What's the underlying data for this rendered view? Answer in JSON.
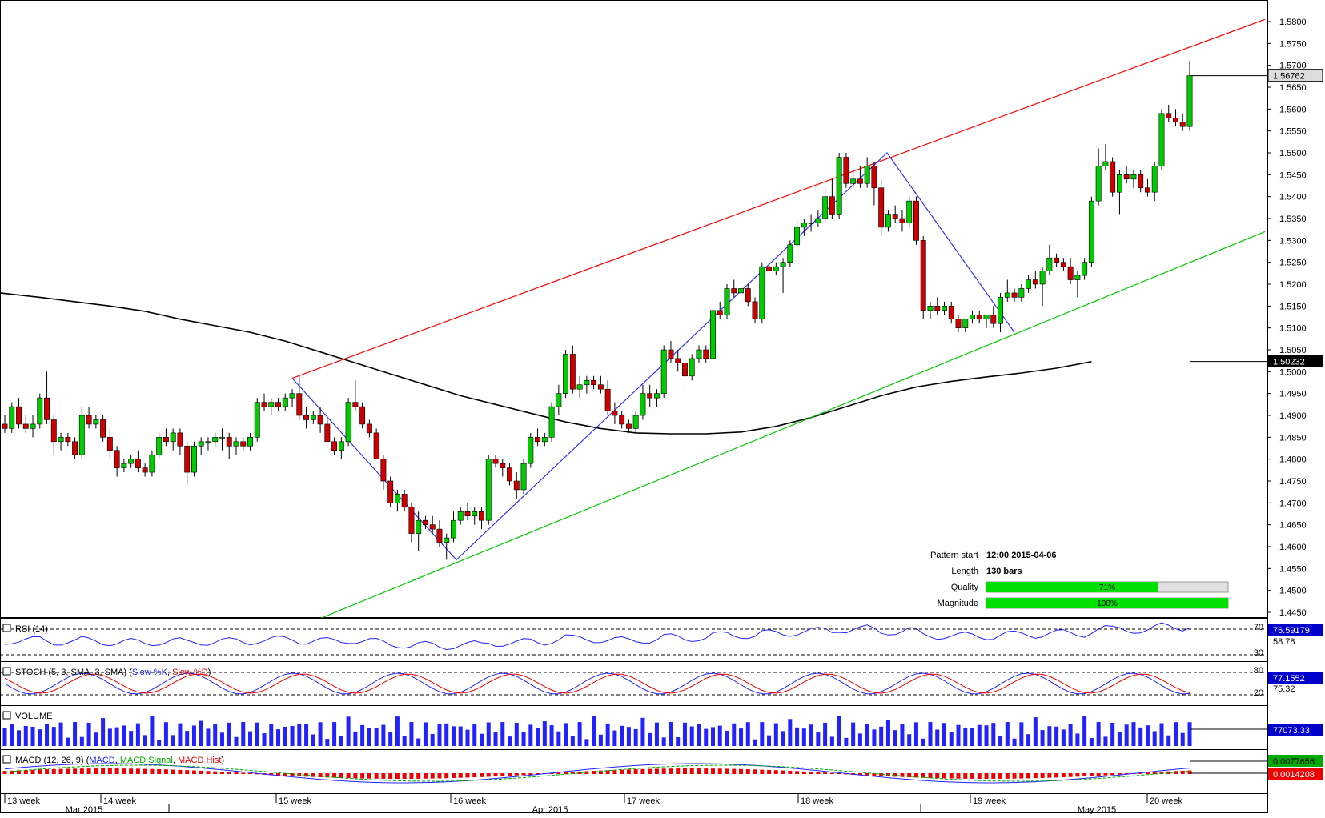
{
  "chart_data": {
    "type": "candlestick",
    "y_axis": {
      "min": 1.445,
      "max": 1.58,
      "ticks": [
        "1.5800",
        "1.5750",
        "1.5700",
        "1.5650",
        "1.5600",
        "1.5550",
        "1.5500",
        "1.5450",
        "1.5400",
        "1.5350",
        "1.5300",
        "1.5250",
        "1.5200",
        "1.5150",
        "1.5100",
        "1.5050",
        "1.5000",
        "1.4950",
        "1.4900",
        "1.4850",
        "1.4800",
        "1.4750",
        "1.4700",
        "1.4650",
        "1.4600",
        "1.4550",
        "1.4500",
        "1.4450"
      ]
    },
    "x_axis": {
      "week_labels": [
        "13 week",
        "14 week",
        "15 week",
        "16 week",
        "17 week",
        "18 week",
        "19 week",
        "20 week"
      ],
      "month_labels": [
        "Mar 2015",
        "Apr 2015",
        "May 2015"
      ]
    },
    "last_price": {
      "value": 1.56762,
      "label": "1.56762"
    },
    "moving_average": {
      "last_value": 1.50232,
      "label": "1.50232",
      "points": [
        [
          0,
          1.518
        ],
        [
          5,
          1.517
        ],
        [
          10,
          1.516
        ],
        [
          15,
          1.515
        ],
        [
          20,
          1.5138
        ],
        [
          25,
          1.512
        ],
        [
          30,
          1.5105
        ],
        [
          35,
          1.509
        ],
        [
          40,
          1.507
        ],
        [
          45,
          1.5045
        ],
        [
          50,
          1.502
        ],
        [
          55,
          1.4995
        ],
        [
          60,
          1.497
        ],
        [
          65,
          1.4945
        ],
        [
          70,
          1.4925
        ],
        [
          75,
          1.4905
        ],
        [
          80,
          1.4885
        ],
        [
          85,
          1.487
        ],
        [
          90,
          1.486
        ],
        [
          95,
          1.4858
        ],
        [
          100,
          1.4858
        ],
        [
          105,
          1.4862
        ],
        [
          110,
          1.4875
        ],
        [
          115,
          1.4895
        ],
        [
          120,
          1.492
        ],
        [
          125,
          1.4945
        ],
        [
          130,
          1.4965
        ],
        [
          135,
          1.4978
        ],
        [
          140,
          1.4988
        ],
        [
          145,
          1.4997
        ],
        [
          150,
          1.5008
        ],
        [
          155,
          1.5023
        ]
      ]
    },
    "candles": [
      [
        1.488,
        1.49,
        1.486,
        1.487
      ],
      [
        1.487,
        1.493,
        1.486,
        1.492
      ],
      [
        1.492,
        1.494,
        1.487,
        1.488
      ],
      [
        1.488,
        1.49,
        1.486,
        1.487
      ],
      [
        1.487,
        1.49,
        1.485,
        1.488
      ],
      [
        1.488,
        1.495,
        1.487,
        1.494
      ],
      [
        1.494,
        1.5,
        1.488,
        1.489
      ],
      [
        1.489,
        1.49,
        1.481,
        1.484
      ],
      [
        1.484,
        1.486,
        1.482,
        1.485
      ],
      [
        1.485,
        1.486,
        1.483,
        1.484
      ],
      [
        1.484,
        1.485,
        1.48,
        1.481
      ],
      [
        1.481,
        1.492,
        1.48,
        1.49
      ],
      [
        1.49,
        1.492,
        1.487,
        1.488
      ],
      [
        1.488,
        1.49,
        1.487,
        1.489
      ],
      [
        1.489,
        1.49,
        1.484,
        1.485
      ],
      [
        1.485,
        1.487,
        1.48,
        1.482
      ],
      [
        1.482,
        1.483,
        1.476,
        1.478
      ],
      [
        1.478,
        1.48,
        1.477,
        1.479
      ],
      [
        1.479,
        1.481,
        1.478,
        1.48
      ],
      [
        1.48,
        1.482,
        1.477,
        1.478
      ],
      [
        1.478,
        1.479,
        1.476,
        1.477
      ],
      [
        1.477,
        1.482,
        1.476,
        1.481
      ],
      [
        1.481,
        1.486,
        1.48,
        1.485
      ],
      [
        1.485,
        1.487,
        1.483,
        1.484
      ],
      [
        1.484,
        1.487,
        1.482,
        1.486
      ],
      [
        1.486,
        1.487,
        1.481,
        1.483
      ],
      [
        1.483,
        1.484,
        1.474,
        1.477
      ],
      [
        1.477,
        1.484,
        1.476,
        1.483
      ],
      [
        1.483,
        1.485,
        1.481,
        1.484
      ],
      [
        1.484,
        1.485,
        1.482,
        1.484
      ],
      [
        1.484,
        1.486,
        1.483,
        1.485
      ],
      [
        1.485,
        1.487,
        1.482,
        1.485
      ],
      [
        1.485,
        1.486,
        1.48,
        1.483
      ],
      [
        1.483,
        1.485,
        1.481,
        1.484
      ],
      [
        1.484,
        1.485,
        1.482,
        1.483
      ],
      [
        1.483,
        1.486,
        1.482,
        1.485
      ],
      [
        1.485,
        1.494,
        1.484,
        1.493
      ],
      [
        1.493,
        1.495,
        1.491,
        1.492
      ],
      [
        1.492,
        1.494,
        1.49,
        1.493
      ],
      [
        1.493,
        1.494,
        1.491,
        1.492
      ],
      [
        1.492,
        1.495,
        1.491,
        1.494
      ],
      [
        1.494,
        1.496,
        1.492,
        1.495
      ],
      [
        1.495,
        1.499,
        1.489,
        1.49
      ],
      [
        1.49,
        1.492,
        1.487,
        1.489
      ],
      [
        1.489,
        1.491,
        1.488,
        1.49
      ],
      [
        1.49,
        1.492,
        1.486,
        1.488
      ],
      [
        1.488,
        1.489,
        1.484,
        1.484
      ],
      [
        1.484,
        1.485,
        1.481,
        1.482
      ],
      [
        1.482,
        1.485,
        1.48,
        1.484
      ],
      [
        1.484,
        1.494,
        1.483,
        1.493
      ],
      [
        1.493,
        1.498,
        1.491,
        1.492
      ],
      [
        1.492,
        1.493,
        1.487,
        1.488
      ],
      [
        1.488,
        1.489,
        1.485,
        1.486
      ],
      [
        1.486,
        1.487,
        1.48,
        1.48
      ],
      [
        1.48,
        1.481,
        1.473,
        1.475
      ],
      [
        1.475,
        1.476,
        1.469,
        1.47
      ],
      [
        1.47,
        1.473,
        1.468,
        1.472
      ],
      [
        1.472,
        1.473,
        1.468,
        1.469
      ],
      [
        1.469,
        1.47,
        1.461,
        1.463
      ],
      [
        1.463,
        1.468,
        1.459,
        1.466
      ],
      [
        1.466,
        1.467,
        1.464,
        1.465
      ],
      [
        1.465,
        1.467,
        1.463,
        1.464
      ],
      [
        1.464,
        1.466,
        1.46,
        1.461
      ],
      [
        1.461,
        1.463,
        1.457,
        1.462
      ],
      [
        1.462,
        1.468,
        1.461,
        1.466
      ],
      [
        1.466,
        1.469,
        1.465,
        1.468
      ],
      [
        1.468,
        1.47,
        1.466,
        1.467
      ],
      [
        1.467,
        1.469,
        1.465,
        1.468
      ],
      [
        1.468,
        1.469,
        1.464,
        1.466
      ],
      [
        1.466,
        1.481,
        1.465,
        1.48
      ],
      [
        1.48,
        1.481,
        1.478,
        1.479
      ],
      [
        1.479,
        1.48,
        1.476,
        1.478
      ],
      [
        1.478,
        1.479,
        1.474,
        1.475
      ],
      [
        1.475,
        1.477,
        1.471,
        1.473
      ],
      [
        1.473,
        1.48,
        1.472,
        1.479
      ],
      [
        1.479,
        1.486,
        1.478,
        1.485
      ],
      [
        1.485,
        1.487,
        1.483,
        1.484
      ],
      [
        1.484,
        1.486,
        1.483,
        1.485
      ],
      [
        1.485,
        1.493,
        1.484,
        1.492
      ],
      [
        1.492,
        1.497,
        1.49,
        1.495
      ],
      [
        1.495,
        1.505,
        1.494,
        1.504
      ],
      [
        1.504,
        1.506,
        1.495,
        1.496
      ],
      [
        1.496,
        1.499,
        1.494,
        1.497
      ],
      [
        1.497,
        1.499,
        1.495,
        1.498
      ],
      [
        1.498,
        1.499,
        1.496,
        1.497
      ],
      [
        1.497,
        1.499,
        1.495,
        1.496
      ],
      [
        1.496,
        1.498,
        1.49,
        1.491
      ],
      [
        1.491,
        1.493,
        1.488,
        1.49
      ],
      [
        1.49,
        1.491,
        1.487,
        1.488
      ],
      [
        1.488,
        1.489,
        1.486,
        1.487
      ],
      [
        1.487,
        1.491,
        1.486,
        1.49
      ],
      [
        1.49,
        1.497,
        1.489,
        1.495
      ],
      [
        1.495,
        1.497,
        1.492,
        1.494
      ],
      [
        1.494,
        1.496,
        1.492,
        1.495
      ],
      [
        1.495,
        1.506,
        1.494,
        1.505
      ],
      [
        1.505,
        1.507,
        1.502,
        1.503
      ],
      [
        1.503,
        1.505,
        1.5,
        1.502
      ],
      [
        1.502,
        1.503,
        1.496,
        1.499
      ],
      [
        1.499,
        1.504,
        1.498,
        1.503
      ],
      [
        1.503,
        1.506,
        1.502,
        1.505
      ],
      [
        1.505,
        1.506,
        1.502,
        1.503
      ],
      [
        1.503,
        1.515,
        1.502,
        1.514
      ],
      [
        1.514,
        1.516,
        1.512,
        1.513
      ],
      [
        1.513,
        1.52,
        1.512,
        1.519
      ],
      [
        1.519,
        1.521,
        1.517,
        1.518
      ],
      [
        1.518,
        1.52,
        1.517,
        1.519
      ],
      [
        1.519,
        1.52,
        1.515,
        1.516
      ],
      [
        1.516,
        1.517,
        1.511,
        1.512
      ],
      [
        1.512,
        1.525,
        1.511,
        1.524
      ],
      [
        1.524,
        1.526,
        1.522,
        1.523
      ],
      [
        1.523,
        1.525,
        1.522,
        1.524
      ],
      [
        1.524,
        1.526,
        1.518,
        1.525
      ],
      [
        1.525,
        1.53,
        1.524,
        1.529
      ],
      [
        1.529,
        1.535,
        1.528,
        1.533
      ],
      [
        1.533,
        1.535,
        1.531,
        1.534
      ],
      [
        1.534,
        1.536,
        1.532,
        1.534
      ],
      [
        1.534,
        1.537,
        1.533,
        1.535
      ],
      [
        1.535,
        1.542,
        1.534,
        1.54
      ],
      [
        1.54,
        1.544,
        1.535,
        1.536
      ],
      [
        1.536,
        1.55,
        1.535,
        1.549
      ],
      [
        1.549,
        1.55,
        1.542,
        1.543
      ],
      [
        1.543,
        1.546,
        1.542,
        1.544
      ],
      [
        1.544,
        1.547,
        1.542,
        1.543
      ],
      [
        1.543,
        1.549,
        1.542,
        1.547
      ],
      [
        1.547,
        1.548,
        1.538,
        1.542
      ],
      [
        1.542,
        1.544,
        1.531,
        1.533
      ],
      [
        1.533,
        1.537,
        1.532,
        1.536
      ],
      [
        1.536,
        1.538,
        1.534,
        1.535
      ],
      [
        1.535,
        1.537,
        1.532,
        1.534
      ],
      [
        1.534,
        1.54,
        1.533,
        1.539
      ],
      [
        1.539,
        1.54,
        1.529,
        1.53
      ],
      [
        1.53,
        1.531,
        1.512,
        1.514
      ],
      [
        1.514,
        1.516,
        1.512,
        1.515
      ],
      [
        1.515,
        1.517,
        1.513,
        1.514
      ],
      [
        1.514,
        1.516,
        1.513,
        1.515
      ],
      [
        1.515,
        1.516,
        1.511,
        1.512
      ],
      [
        1.512,
        1.513,
        1.509,
        1.51
      ],
      [
        1.51,
        1.512,
        1.509,
        1.512
      ],
      [
        1.512,
        1.514,
        1.511,
        1.513
      ],
      [
        1.513,
        1.514,
        1.511,
        1.512
      ],
      [
        1.512,
        1.513,
        1.51,
        1.513
      ],
      [
        1.513,
        1.515,
        1.51,
        1.511
      ],
      [
        1.511,
        1.518,
        1.509,
        1.517
      ],
      [
        1.517,
        1.521,
        1.516,
        1.518
      ],
      [
        1.518,
        1.519,
        1.516,
        1.517
      ],
      [
        1.517,
        1.52,
        1.516,
        1.519
      ],
      [
        1.519,
        1.522,
        1.518,
        1.521
      ],
      [
        1.521,
        1.523,
        1.519,
        1.52
      ],
      [
        1.52,
        1.524,
        1.515,
        1.523
      ],
      [
        1.523,
        1.529,
        1.522,
        1.526
      ],
      [
        1.526,
        1.527,
        1.524,
        1.525
      ],
      [
        1.525,
        1.526,
        1.523,
        1.524
      ],
      [
        1.524,
        1.526,
        1.52,
        1.521
      ],
      [
        1.521,
        1.523,
        1.517,
        1.522
      ],
      [
        1.522,
        1.526,
        1.521,
        1.525
      ],
      [
        1.525,
        1.54,
        1.524,
        1.539
      ],
      [
        1.539,
        1.551,
        1.538,
        1.547
      ],
      [
        1.547,
        1.552,
        1.546,
        1.548
      ],
      [
        1.548,
        1.549,
        1.54,
        1.541
      ],
      [
        1.541,
        1.546,
        1.536,
        1.545
      ],
      [
        1.545,
        1.547,
        1.543,
        1.544
      ],
      [
        1.544,
        1.546,
        1.542,
        1.545
      ],
      [
        1.545,
        1.546,
        1.541,
        1.542
      ],
      [
        1.542,
        1.544,
        1.54,
        1.541
      ],
      [
        1.541,
        1.548,
        1.539,
        1.547
      ],
      [
        1.547,
        1.56,
        1.546,
        1.559
      ],
      [
        1.559,
        1.561,
        1.557,
        1.558
      ],
      [
        1.558,
        1.56,
        1.556,
        1.557
      ],
      [
        1.557,
        1.559,
        1.555,
        1.556
      ],
      [
        1.556,
        1.571,
        1.555,
        1.56762
      ]
    ],
    "pattern": {
      "upper_line": [
        [
          0,
          1.4985
        ],
        [
          1,
          1.5805
        ]
      ],
      "lower_line": [
        [
          0,
          1.443
        ],
        [
          1,
          1.532
        ]
      ],
      "zigzag": [
        [
          1.4985
        ],
        [
          1.457
        ],
        [
          1.55
        ],
        [
          1.509
        ]
      ],
      "labels": {
        "pattern_start_label": "Pattern start",
        "pattern_start_value": "12:00 2015-04-06",
        "length_label": "Length",
        "length_value": "130 bars",
        "quality_label": "Quality",
        "quality_value": 71,
        "quality_text": "71%",
        "magnitude_label": "Magnitude",
        "magnitude_value": 100,
        "magnitude_text": "100%"
      }
    },
    "indicators": {
      "rsi": {
        "label": "RSI (14)",
        "level_high": "70",
        "level_low": "30",
        "value_1": "76.59179",
        "value_2": "58.78"
      },
      "stoch": {
        "label": "STOCH (5, 3, SMA, 3, SMA)",
        "slow_k": "Slow %K",
        "slow_d": "Slow %D",
        "level_high": "80",
        "level_low": "20",
        "value_1": "77.1552",
        "value_2": "75.32"
      },
      "volume": {
        "label": "VOLUME",
        "value": "77073.33"
      },
      "macd": {
        "label": "MACD (12, 26, 9)",
        "line": "MACD",
        "signal": "MACD Signal",
        "hist": "MACD Hist",
        "value_1": "0.0077656",
        "value_2": "0.0014208"
      }
    },
    "colors": {
      "up": "#00cc00",
      "down": "#cc0000",
      "upper_line": "#ff0000",
      "lower_line": "#00cc00",
      "zigzag": "#3333ff",
      "ma": "#000000",
      "quality_bar": "#00e000"
    }
  }
}
